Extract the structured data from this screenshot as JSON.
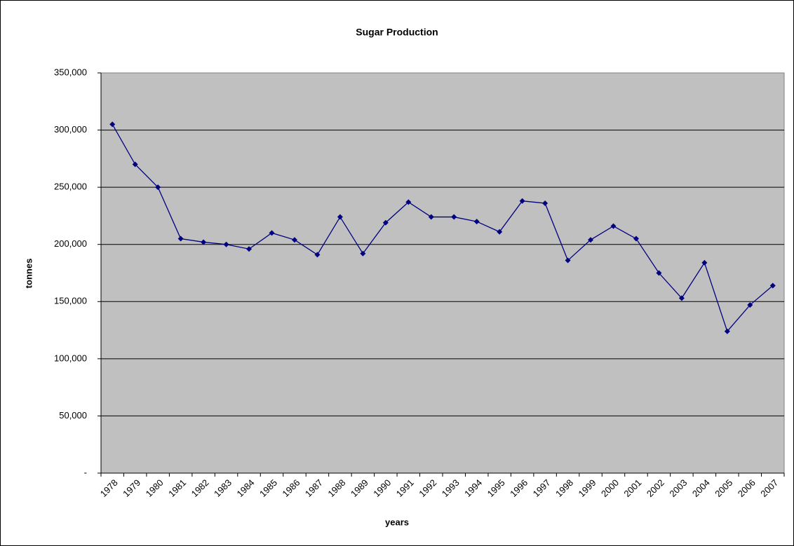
{
  "chart_data": {
    "type": "line",
    "title": "Sugar Production",
    "x_label": "years",
    "y_label": "tonnes",
    "categories": [
      "1978",
      "1979",
      "1980",
      "1981",
      "1982",
      "1983",
      "1984",
      "1985",
      "1986",
      "1987",
      "1988",
      "1989",
      "1990",
      "1991",
      "1992",
      "1993",
      "1994",
      "1995",
      "1996",
      "1997",
      "1998",
      "1999",
      "2000",
      "2001",
      "2002",
      "2003",
      "2004",
      "2005",
      "2006",
      "2007"
    ],
    "values": [
      305000,
      270000,
      250000,
      205000,
      202000,
      200000,
      196000,
      210000,
      204000,
      191000,
      224000,
      192000,
      219000,
      237000,
      224000,
      224000,
      220000,
      211000,
      238000,
      236000,
      186000,
      204000,
      216000,
      205000,
      175000,
      153000,
      184000,
      124000,
      147000,
      164000
    ],
    "color": "#000080",
    "ylim": [
      0,
      350000
    ],
    "yticks": [
      {
        "value": 0,
        "label": "-"
      },
      {
        "value": 50000,
        "label": "50,000"
      },
      {
        "value": 100000,
        "label": "100,000"
      },
      {
        "value": 150000,
        "label": "150,000"
      },
      {
        "value": 200000,
        "label": "200,000"
      },
      {
        "value": 250000,
        "label": "250,000"
      },
      {
        "value": 300000,
        "label": "300,000"
      },
      {
        "value": 350000,
        "label": "350,000"
      }
    ],
    "grid": true,
    "plot_background": "#c0c0c0"
  }
}
